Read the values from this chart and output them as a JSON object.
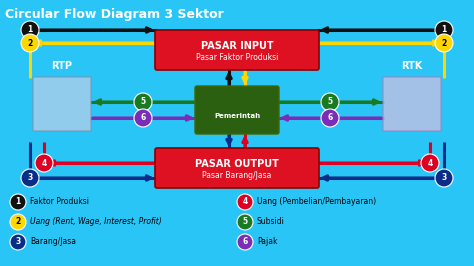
{
  "title": "Circular Flow Diagram 3 Sektor",
  "bg_color": "#29C5F6",
  "title_color": "white",
  "title_fontsize": 9,
  "pasar_input_label": "PASAR INPUT",
  "pasar_input_sub": "Pasar Faktor Produksi",
  "pasar_output_label": "PASAR OUTPUT",
  "pasar_output_sub": "Pasar Barang/Jasa",
  "pemerintah_label": "Pemerintah",
  "rtp_label": "RTP",
  "rtk_label": "RTK",
  "arrow_lw": 2.2,
  "colors": {
    "black": "#111111",
    "yellow": "#FFD700",
    "dark_blue": "#0a2d8a",
    "red": "#dd0022",
    "green": "#1a7a22",
    "purple": "#7B2DB8",
    "box_red": "#dd1122",
    "pem_green": "#2a6010",
    "bg": "#29C5F6"
  },
  "legend": [
    {
      "num": "1",
      "bg": "#111111",
      "fg": "white",
      "text": "Faktor Produksi",
      "italic": false
    },
    {
      "num": "2",
      "bg": "#FFD700",
      "fg": "black",
      "text": "Uang (Rent, Wage, Interest, Profit)",
      "italic": true
    },
    {
      "num": "3",
      "bg": "#0a2d8a",
      "fg": "white",
      "text": "Barang/Jasa",
      "italic": false
    },
    {
      "num": "4",
      "bg": "#dd0022",
      "fg": "white",
      "text": "Uang (Pembelian/Pembayaran)",
      "italic": false
    },
    {
      "num": "5",
      "bg": "#1a7a22",
      "fg": "white",
      "text": "Subsidi",
      "italic": false
    },
    {
      "num": "6",
      "bg": "#7B2DB8",
      "fg": "white",
      "text": "Pajak",
      "italic": false
    }
  ]
}
